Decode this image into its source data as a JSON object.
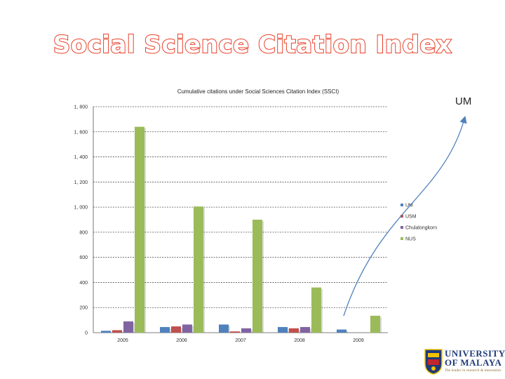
{
  "slide": {
    "title": "Social Science Citation Index",
    "callout_label": "UM"
  },
  "logo": {
    "line1": "UNIVERSITY",
    "line2": "OF MALAYA",
    "tagline": "The leader in research & innovation",
    "colors": {
      "navy": "#1f3b78",
      "gold": "#f2c200",
      "red": "#c0262d"
    }
  },
  "chart_data": {
    "type": "bar",
    "title": "Cumulative citations under Social Sciences Citation Index (SSCI)",
    "xlabel": "",
    "ylabel": "",
    "ylim": [
      0,
      1800
    ],
    "yticks": [
      0,
      200,
      400,
      600,
      800,
      1000,
      1200,
      1400,
      1600,
      1800
    ],
    "ytick_labels": [
      "0",
      "200",
      "400",
      "600",
      "800",
      "1, 000",
      "1, 200",
      "1, 400",
      "1, 600",
      "1, 800"
    ],
    "grid": true,
    "legend_position": "right",
    "categories": [
      "2005",
      "2006",
      "2007",
      "2008",
      "2009"
    ],
    "series": [
      {
        "name": "UM",
        "color": "#4f81bd",
        "values": [
          15,
          45,
          65,
          45,
          25
        ]
      },
      {
        "name": "USM",
        "color": "#c0504d",
        "values": [
          20,
          50,
          10,
          35,
          0
        ]
      },
      {
        "name": "Chulalongkorn",
        "color": "#8064a2",
        "values": [
          90,
          65,
          35,
          45,
          0
        ]
      },
      {
        "name": "NUS",
        "color": "#9bbb59",
        "values": [
          1640,
          1005,
          900,
          360,
          135
        ]
      }
    ]
  }
}
